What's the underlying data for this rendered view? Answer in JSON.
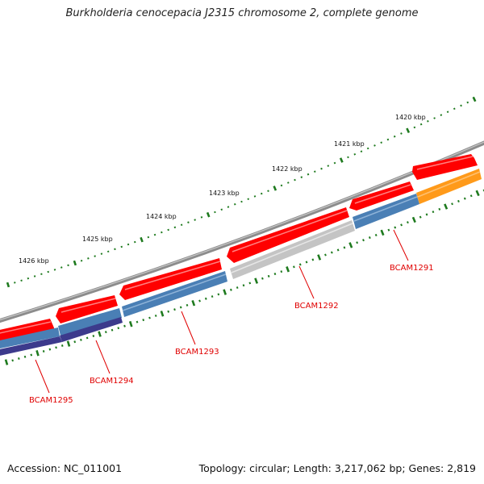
{
  "title": "Burkholderia cenocepacia J2315 chromosome 2, complete genome",
  "footer": {
    "accession": "Accession: NC_011001",
    "summary": "Topology: circular; Length: 3,217,062 bp; Genes: 2,819"
  },
  "scale": {
    "labels": [
      "1420 kbp",
      "1421 kbp",
      "1422 kbp",
      "1423 kbp",
      "1424 kbp",
      "1425 kbp",
      "1426 kbp"
    ]
  },
  "genes": [
    {
      "name": "BCAM1291"
    },
    {
      "name": "BCAM1292"
    },
    {
      "name": "BCAM1293"
    },
    {
      "name": "BCAM1294"
    },
    {
      "name": "BCAM1295"
    }
  ],
  "colors": {
    "backbone": "#8a8a8a",
    "forward_arrows": "#ff0000",
    "steel_blue": "#4a7fb5",
    "gray_feature": "#c4c4c4",
    "orange_feature": "#ff9900",
    "navy_feature": "#3c3a8c",
    "kbp_ticks": "#1e7a1e",
    "gene_labels": "#e00000"
  }
}
